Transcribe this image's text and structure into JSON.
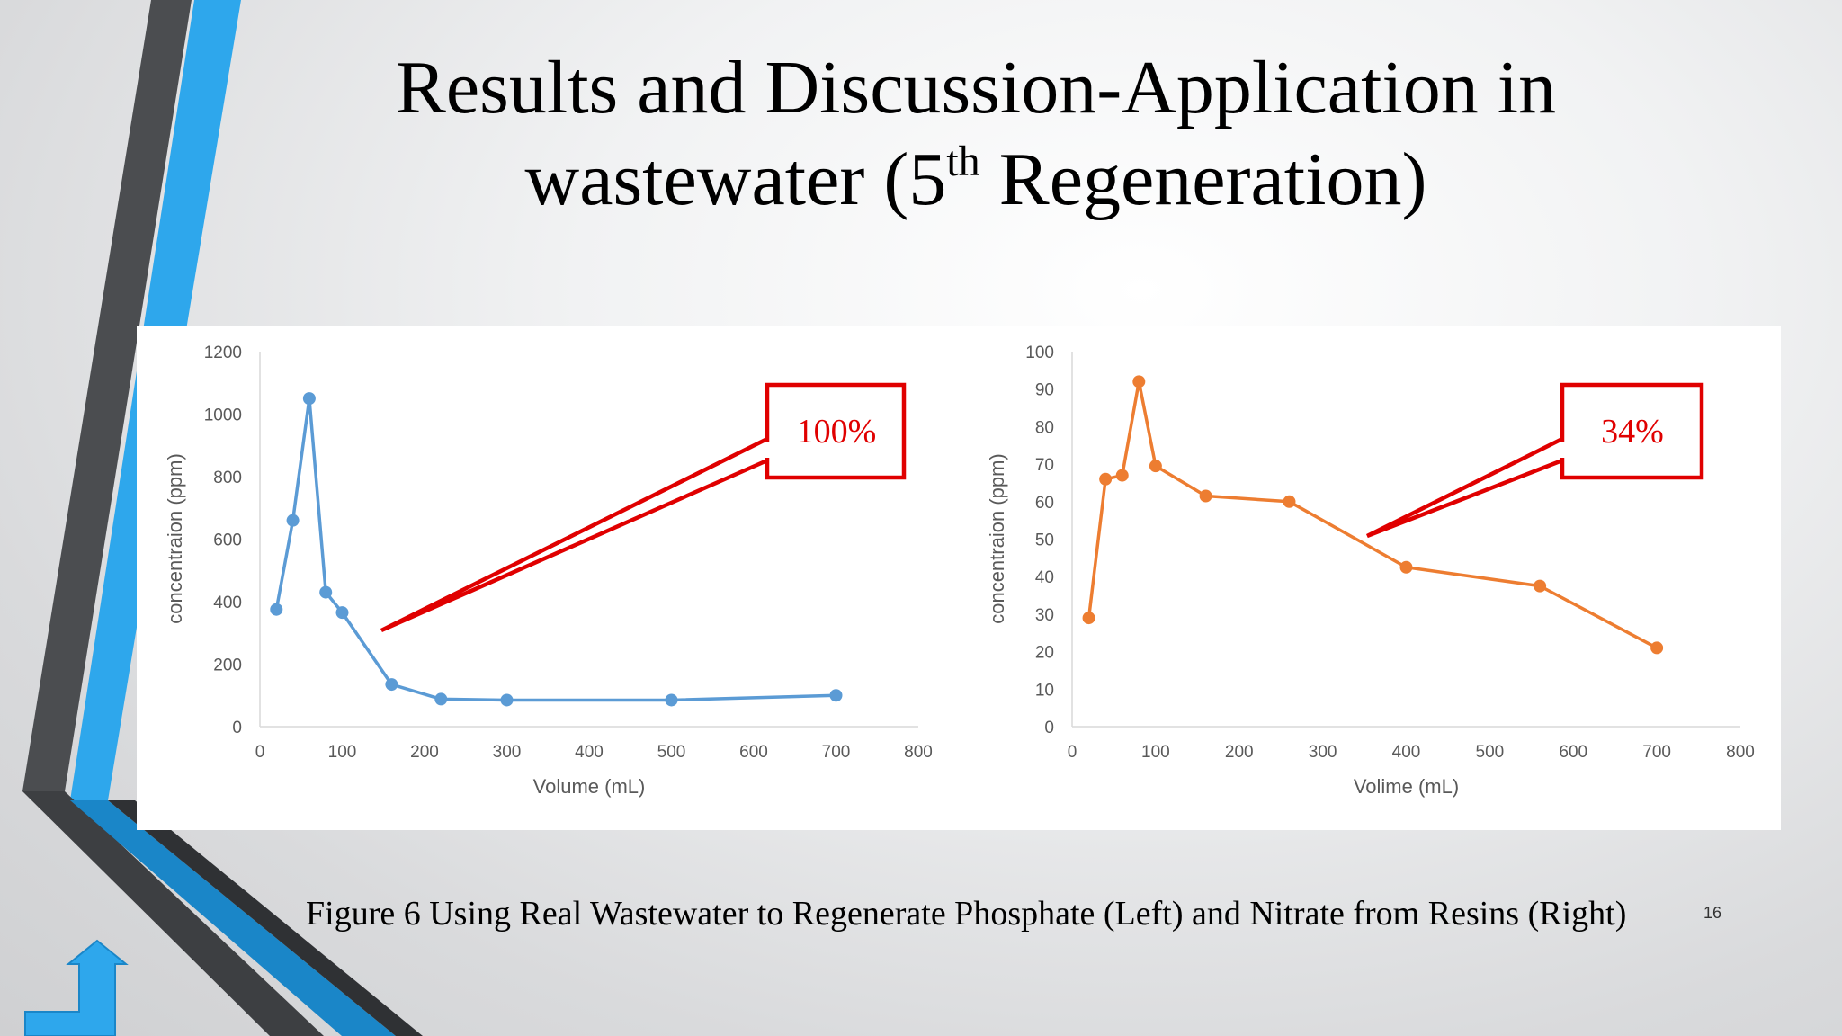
{
  "slide": {
    "title_line1": "Results and Discussion-Application in",
    "title_line2_pre": "wastewater (5",
    "title_line2_sup": "th",
    "title_line2_post": " Regeneration)",
    "caption": "Figure 6 Using Real Wastewater to Regenerate Phosphate (Left) and Nitrate from Resins (Right)",
    "page_number": "16",
    "accent_blue": "#2e9fe6",
    "accent_dark": "#4a4a4a"
  },
  "chart_data": [
    {
      "type": "line",
      "title": "",
      "xlabel": "Volume (mL)",
      "ylabel": "concentraion (ppm)",
      "xlim": [
        0,
        800
      ],
      "ylim": [
        0,
        1200
      ],
      "xticks": [
        0,
        100,
        200,
        300,
        400,
        500,
        600,
        700,
        800
      ],
      "yticks": [
        0,
        200,
        400,
        600,
        800,
        1000,
        1200
      ],
      "color": "#5b9bd5",
      "series": [
        {
          "x": [
            20,
            40,
            60,
            80,
            100,
            160,
            220,
            300,
            500,
            700
          ],
          "y": [
            375,
            660,
            1050,
            430,
            365,
            135,
            88,
            85,
            85,
            100
          ]
        }
      ],
      "callout": {
        "text": "100%"
      }
    },
    {
      "type": "line",
      "title": "",
      "xlabel": "Volime (mL)",
      "ylabel": "concentraion (ppm)",
      "xlim": [
        0,
        800
      ],
      "ylim": [
        0,
        100
      ],
      "xticks": [
        0,
        100,
        200,
        300,
        400,
        500,
        600,
        700,
        800
      ],
      "yticks": [
        0,
        10,
        20,
        30,
        40,
        50,
        60,
        70,
        80,
        90,
        100
      ],
      "color": "#ed7d31",
      "series": [
        {
          "x": [
            20,
            40,
            60,
            80,
            100,
            160,
            260,
            400,
            560,
            700
          ],
          "y": [
            29,
            66,
            67,
            92,
            69.5,
            61.5,
            60,
            42.5,
            37.5,
            21
          ]
        }
      ],
      "callout": {
        "text": "34%"
      }
    }
  ]
}
